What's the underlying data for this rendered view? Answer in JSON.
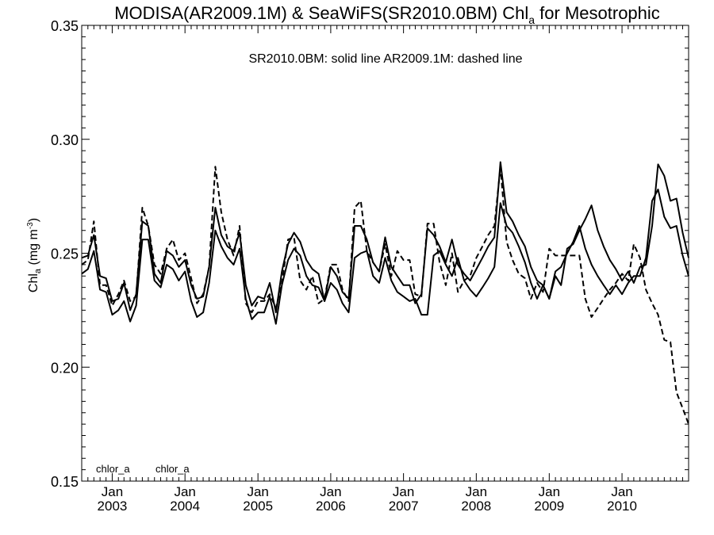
{
  "chart_data": {
    "type": "line",
    "title_main": "MODISA(AR2009.1M) & SeaWiFS(SR2010.0BM)  Chl",
    "title_sub": "a",
    "title_end": " for Mesotrophic",
    "annotation": "SR2010.0BM: solid line   AR2009.1M: dashed line",
    "ylabel_main": "Chl",
    "ylabel_sub": "a",
    "ylabel_units": " (mg m",
    "ylabel_sup": "-3",
    "ylabel_close": ")",
    "ylim": [
      0.15,
      0.35
    ],
    "xlim": [
      "2002-08-01",
      "2010-12-01"
    ],
    "y_ticks": [
      "0.15",
      "0.20",
      "0.25",
      "0.30",
      "0.35"
    ],
    "x_ticks": [
      {
        "top": "Jan",
        "bottom": "2003",
        "date": "2003-01-01"
      },
      {
        "top": "Jan",
        "bottom": "2004",
        "date": "2004-01-01"
      },
      {
        "top": "Jan",
        "bottom": "2005",
        "date": "2005-01-01"
      },
      {
        "top": "Jan",
        "bottom": "2006",
        "date": "2006-01-01"
      },
      {
        "top": "Jan",
        "bottom": "2007",
        "date": "2007-01-01"
      },
      {
        "top": "Jan",
        "bottom": "2008",
        "date": "2008-01-01"
      },
      {
        "top": "Jan",
        "bottom": "2009",
        "date": "2009-01-01"
      },
      {
        "top": "Jan",
        "bottom": "2010",
        "date": "2010-01-01"
      }
    ],
    "corner_labels": [
      "chlor_a",
      "chlor_a"
    ],
    "series": [
      {
        "style": "solid",
        "x": [
          "2002-08-01",
          "2002-09-01",
          "2002-10-01",
          "2002-11-01",
          "2002-12-01",
          "2003-01-01",
          "2003-02-01",
          "2003-03-01",
          "2003-04-01",
          "2003-05-01",
          "2003-06-01",
          "2003-07-01",
          "2003-08-01",
          "2003-09-01",
          "2003-10-01",
          "2003-11-01",
          "2003-12-01",
          "2004-01-01",
          "2004-02-01",
          "2004-03-01",
          "2004-04-01",
          "2004-05-01",
          "2004-06-01",
          "2004-07-01",
          "2004-08-01",
          "2004-09-01",
          "2004-10-01",
          "2004-11-01",
          "2004-12-01",
          "2005-01-01",
          "2005-02-01",
          "2005-03-01",
          "2005-04-01",
          "2005-05-01",
          "2005-06-01",
          "2005-07-01",
          "2005-08-01",
          "2005-09-01",
          "2005-10-01",
          "2005-11-01",
          "2005-12-01",
          "2006-01-01",
          "2006-02-01",
          "2006-03-01",
          "2006-04-01",
          "2006-05-01",
          "2006-06-01",
          "2006-07-01",
          "2006-08-01",
          "2006-09-01",
          "2006-10-01",
          "2006-11-01",
          "2006-12-01",
          "2007-01-01",
          "2007-02-01",
          "2007-03-01",
          "2007-04-01",
          "2007-05-01",
          "2007-06-01",
          "2007-07-01",
          "2007-08-01",
          "2007-09-01",
          "2007-10-01",
          "2007-11-01",
          "2007-12-01",
          "2008-01-01",
          "2008-02-01",
          "2008-03-01",
          "2008-04-01",
          "2008-05-01",
          "2008-06-01",
          "2008-07-01",
          "2008-08-01",
          "2008-09-01",
          "2008-10-01",
          "2008-11-01",
          "2008-12-01",
          "2009-01-01",
          "2009-02-01",
          "2009-03-01",
          "2009-04-01",
          "2009-05-01",
          "2009-06-01",
          "2009-07-01",
          "2009-08-01",
          "2009-09-01",
          "2009-10-01",
          "2009-11-01",
          "2009-12-01",
          "2010-01-01",
          "2010-02-01",
          "2010-03-01",
          "2010-04-01",
          "2010-05-01",
          "2010-06-01",
          "2010-07-01",
          "2010-08-01",
          "2010-09-01",
          "2010-10-01",
          "2010-11-01",
          "2010-12-01"
        ],
        "values": [
          0.248,
          0.249,
          0.258,
          0.24,
          0.239,
          0.229,
          0.23,
          0.237,
          0.225,
          0.232,
          0.264,
          0.262,
          0.241,
          0.237,
          0.251,
          0.249,
          0.244,
          0.247,
          0.236,
          0.23,
          0.231,
          0.244,
          0.27,
          0.258,
          0.253,
          0.251,
          0.259,
          0.236,
          0.227,
          0.231,
          0.23,
          0.237,
          0.224,
          0.242,
          0.254,
          0.259,
          0.255,
          0.247,
          0.243,
          0.241,
          0.229,
          0.244,
          0.24,
          0.233,
          0.23,
          0.262,
          0.262,
          0.256,
          0.246,
          0.242,
          0.257,
          0.244,
          0.24,
          0.236,
          0.236,
          0.228,
          0.232,
          0.261,
          0.258,
          0.253,
          0.246,
          0.256,
          0.245,
          0.241,
          0.238,
          0.243,
          0.248,
          0.253,
          0.257,
          0.29,
          0.268,
          0.264,
          0.258,
          0.253,
          0.244,
          0.238,
          0.236,
          0.23,
          0.24,
          0.236,
          0.252,
          0.254,
          0.26,
          0.265,
          0.271,
          0.26,
          0.253,
          0.247,
          0.243,
          0.238,
          0.242,
          0.237,
          0.244,
          0.245,
          0.262,
          0.289,
          0.284,
          0.273,
          0.274,
          0.259,
          0.248
        ]
      },
      {
        "style": "solid",
        "x": [
          "2002-08-01",
          "2002-09-01",
          "2002-10-01",
          "2002-11-01",
          "2002-12-01",
          "2003-01-01",
          "2003-02-01",
          "2003-03-01",
          "2003-04-01",
          "2003-05-01",
          "2003-06-01",
          "2003-07-01",
          "2003-08-01",
          "2003-09-01",
          "2003-10-01",
          "2003-11-01",
          "2003-12-01",
          "2004-01-01",
          "2004-02-01",
          "2004-03-01",
          "2004-04-01",
          "2004-05-01",
          "2004-06-01",
          "2004-07-01",
          "2004-08-01",
          "2004-09-01",
          "2004-10-01",
          "2004-11-01",
          "2004-12-01",
          "2005-01-01",
          "2005-02-01",
          "2005-03-01",
          "2005-04-01",
          "2005-05-01",
          "2005-06-01",
          "2005-07-01",
          "2005-08-01",
          "2005-09-01",
          "2005-10-01",
          "2005-11-01",
          "2005-12-01",
          "2006-01-01",
          "2006-02-01",
          "2006-03-01",
          "2006-04-01",
          "2006-05-01",
          "2006-06-01",
          "2006-07-01",
          "2006-08-01",
          "2006-09-01",
          "2006-10-01",
          "2006-11-01",
          "2006-12-01",
          "2007-01-01",
          "2007-02-01",
          "2007-03-01",
          "2007-04-01",
          "2007-05-01",
          "2007-06-01",
          "2007-07-01",
          "2007-08-01",
          "2007-09-01",
          "2007-10-01",
          "2007-11-01",
          "2007-12-01",
          "2008-01-01",
          "2008-02-01",
          "2008-03-01",
          "2008-04-01",
          "2008-05-01",
          "2008-06-01",
          "2008-07-01",
          "2008-08-01",
          "2008-09-01",
          "2008-10-01",
          "2008-11-01",
          "2008-12-01",
          "2009-01-01",
          "2009-02-01",
          "2009-03-01",
          "2009-04-01",
          "2009-05-01",
          "2009-06-01",
          "2009-07-01",
          "2009-08-01",
          "2009-09-01",
          "2009-10-01",
          "2009-11-01",
          "2009-12-01",
          "2010-01-01",
          "2010-02-01",
          "2010-03-01",
          "2010-04-01",
          "2010-05-01",
          "2010-06-01",
          "2010-07-01",
          "2010-08-01",
          "2010-09-01",
          "2010-10-01",
          "2010-11-01",
          "2010-12-01"
        ],
        "values": [
          0.241,
          0.243,
          0.251,
          0.234,
          0.233,
          0.223,
          0.225,
          0.229,
          0.22,
          0.227,
          0.256,
          0.256,
          0.238,
          0.235,
          0.245,
          0.243,
          0.238,
          0.242,
          0.229,
          0.222,
          0.224,
          0.237,
          0.26,
          0.253,
          0.248,
          0.245,
          0.252,
          0.23,
          0.221,
          0.224,
          0.224,
          0.231,
          0.219,
          0.236,
          0.247,
          0.252,
          0.249,
          0.24,
          0.236,
          0.235,
          0.229,
          0.237,
          0.234,
          0.228,
          0.224,
          0.248,
          0.25,
          0.251,
          0.24,
          0.237,
          0.248,
          0.238,
          0.233,
          0.231,
          0.229,
          0.23,
          0.223,
          0.223,
          0.249,
          0.251,
          0.245,
          0.24,
          0.248,
          0.238,
          0.234,
          0.231,
          0.235,
          0.239,
          0.244,
          0.272,
          0.262,
          0.259,
          0.253,
          0.246,
          0.237,
          0.23,
          0.236,
          0.23,
          0.242,
          0.244,
          0.25,
          0.255,
          0.262,
          0.252,
          0.245,
          0.24,
          0.236,
          0.232,
          0.236,
          0.232,
          0.237,
          0.24,
          0.24,
          0.248,
          0.273,
          0.278,
          0.266,
          0.261,
          0.262,
          0.249,
          0.24
        ]
      },
      {
        "style": "dashed",
        "x": [
          "2002-08-01",
          "2002-09-01",
          "2002-10-01",
          "2002-11-01",
          "2002-12-01",
          "2003-01-01",
          "2003-02-01",
          "2003-03-01",
          "2003-04-01",
          "2003-05-01",
          "2003-06-01",
          "2003-07-01",
          "2003-08-01",
          "2003-09-01",
          "2003-10-01",
          "2003-11-01",
          "2003-12-01",
          "2004-01-01",
          "2004-02-01",
          "2004-03-01",
          "2004-04-01",
          "2004-05-01",
          "2004-06-01",
          "2004-07-01",
          "2004-08-01",
          "2004-09-01",
          "2004-10-01",
          "2004-11-01",
          "2004-12-01",
          "2005-01-01",
          "2005-02-01",
          "2005-03-01",
          "2005-04-01",
          "2005-05-01",
          "2005-06-01",
          "2005-07-01",
          "2005-08-01",
          "2005-09-01",
          "2005-10-01",
          "2005-11-01",
          "2005-12-01",
          "2006-01-01",
          "2006-02-01",
          "2006-03-01",
          "2006-04-01",
          "2006-05-01",
          "2006-06-01",
          "2006-07-01",
          "2006-08-01",
          "2006-09-01",
          "2006-10-01",
          "2006-11-01",
          "2006-12-01",
          "2007-01-01",
          "2007-02-01",
          "2007-03-01",
          "2007-04-01",
          "2007-05-01",
          "2007-06-01",
          "2007-07-01",
          "2007-08-01",
          "2007-09-01",
          "2007-10-01",
          "2007-11-01",
          "2007-12-01",
          "2008-01-01",
          "2008-02-01",
          "2008-03-01",
          "2008-04-01",
          "2008-05-01",
          "2008-06-01",
          "2008-07-01",
          "2008-08-01",
          "2008-09-01",
          "2008-10-01",
          "2008-11-01",
          "2008-12-01",
          "2009-01-01",
          "2009-02-01",
          "2009-03-01",
          "2009-04-01",
          "2009-05-01",
          "2009-06-01",
          "2009-07-01",
          "2009-08-01",
          "2009-09-01",
          "2009-10-01",
          "2009-11-01",
          "2009-12-01",
          "2010-01-01",
          "2010-02-01",
          "2010-03-01",
          "2010-04-01",
          "2010-05-01",
          "2010-06-01",
          "2010-07-01",
          "2010-08-01",
          "2010-09-01",
          "2010-10-01",
          "2010-11-01",
          "2010-12-01"
        ],
        "values": [
          0.245,
          0.247,
          0.264,
          0.236,
          0.236,
          0.227,
          0.232,
          0.238,
          0.229,
          0.231,
          0.27,
          0.262,
          0.245,
          0.241,
          0.252,
          0.256,
          0.247,
          0.25,
          0.239,
          0.228,
          0.232,
          0.244,
          0.288,
          0.268,
          0.256,
          0.249,
          0.262,
          0.228,
          0.224,
          0.229,
          0.229,
          0.232,
          0.226,
          0.237,
          0.256,
          0.257,
          0.238,
          0.234,
          0.24,
          0.228,
          0.23,
          0.245,
          0.245,
          0.234,
          0.229,
          0.27,
          0.273,
          0.251,
          0.246,
          0.242,
          0.254,
          0.24,
          0.251,
          0.247,
          0.247,
          0.232,
          0.231,
          0.263,
          0.263,
          0.246,
          0.236,
          0.25,
          0.233,
          0.238,
          0.24,
          0.248,
          0.253,
          0.258,
          0.262,
          0.288,
          0.255,
          0.247,
          0.241,
          0.239,
          0.23,
          0.237,
          0.233,
          0.252,
          0.249,
          0.249,
          0.249,
          0.249,
          0.249,
          0.23,
          0.222,
          0.226,
          0.23,
          0.234,
          0.237,
          0.241,
          0.238,
          0.254,
          0.248,
          0.234,
          0.228,
          0.223,
          0.212,
          0.211,
          0.189,
          0.182,
          0.175
        ]
      }
    ]
  }
}
